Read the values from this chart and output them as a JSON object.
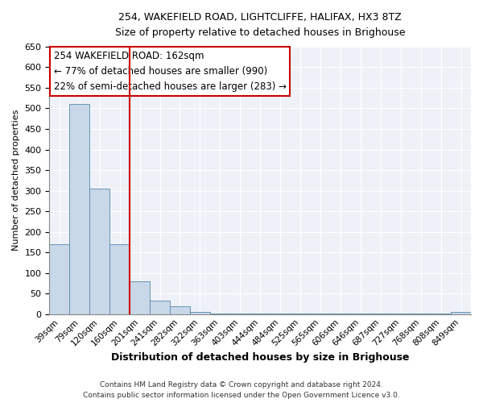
{
  "title_line1": "254, WAKEFIELD ROAD, LIGHTCLIFFE, HALIFAX, HX3 8TZ",
  "title_line2": "Size of property relative to detached houses in Brighouse",
  "xlabel": "Distribution of detached houses by size in Brighouse",
  "ylabel": "Number of detached properties",
  "bar_labels": [
    "39sqm",
    "79sqm",
    "120sqm",
    "160sqm",
    "201sqm",
    "241sqm",
    "282sqm",
    "322sqm",
    "363sqm",
    "403sqm",
    "444sqm",
    "484sqm",
    "525sqm",
    "565sqm",
    "606sqm",
    "646sqm",
    "687sqm",
    "727sqm",
    "768sqm",
    "808sqm",
    "849sqm"
  ],
  "bar_values": [
    170,
    510,
    305,
    170,
    80,
    33,
    20,
    5,
    2,
    1,
    1,
    1,
    1,
    1,
    1,
    1,
    1,
    1,
    1,
    1,
    5
  ],
  "bar_color": "#c8d8e8",
  "bar_edge_color": "#5588aa",
  "vline_x": 3.5,
  "vline_color": "#cc0000",
  "annotation_text": "254 WAKEFIELD ROAD: 162sqm\n← 77% of detached houses are smaller (990)\n22% of semi-detached houses are larger (283) →",
  "annotation_box_color": "white",
  "annotation_box_edge_color": "#cc0000",
  "ylim": [
    0,
    650
  ],
  "yticks": [
    0,
    50,
    100,
    150,
    200,
    250,
    300,
    350,
    400,
    450,
    500,
    550,
    600,
    650
  ],
  "background_color": "#eef2f8",
  "footer_line1": "Contains HM Land Registry data © Crown copyright and database right 2024.",
  "footer_line2": "Contains public sector information licensed under the Open Government Licence v3.0."
}
